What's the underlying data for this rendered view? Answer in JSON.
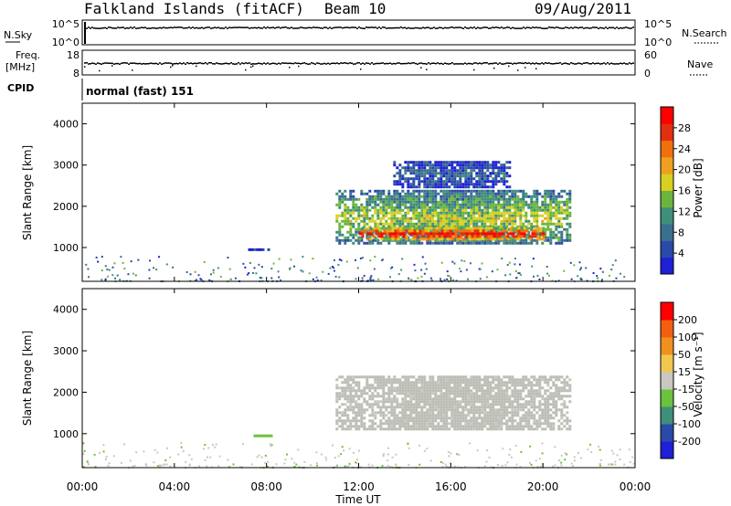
{
  "header": {
    "station": "Falkland Islands (fitACF)",
    "beam": "Beam 10",
    "date": "09/Aug/2011"
  },
  "strips": {
    "nsky_label": "N.Sky",
    "nsearch_label": "N.Search",
    "freq_label_line1": "Freq.",
    "freq_label_line2": "[MHz]",
    "nave_label": "Nave",
    "cpid_label": "CPID",
    "cpid_text": "normal (fast) 151",
    "noise_left_ticks": [
      "10^5",
      "10^0"
    ],
    "noise_right_ticks": [
      "10^5",
      "10^0"
    ],
    "freq_left_ticks": [
      "18",
      "8"
    ],
    "nave_right_ticks": [
      "60",
      "0"
    ]
  },
  "colors": {
    "power_scale": [
      "#1f1fd6",
      "#2a4aa8",
      "#3b6f8e",
      "#3f8f7a",
      "#6bb53c",
      "#d8d020",
      "#f0a020",
      "#f07010",
      "#e03010",
      "#ff0000"
    ],
    "velocity_scale": [
      "#1f1fd6",
      "#2a4aa8",
      "#3f8f7a",
      "#6bc23c",
      "#c8c8c0",
      "#f0c850",
      "#f09020",
      "#f06010",
      "#ff0000"
    ],
    "ground_scatter": "#bdbdb5"
  },
  "chart_data": [
    {
      "type": "heatmap",
      "name": "power",
      "ylabel": "Slant Range [km]",
      "yticks": [
        "4000",
        "3000",
        "2000",
        "1000"
      ],
      "ylim": [
        180,
        4500
      ],
      "xlim": [
        "00:00",
        "24:00"
      ],
      "colorbar_label": "Power [dB]",
      "colorbar_ticks": [
        "28",
        "24",
        "20",
        "16",
        "12",
        "8",
        "4"
      ],
      "colorbar_range": [
        0,
        30
      ],
      "echo_regions": [
        {
          "start_hour": 11.0,
          "end_hour": 21.2,
          "range_km": [
            1100,
            2400
          ],
          "power_db": 14
        },
        {
          "start_hour": 12.0,
          "end_hour": 20.0,
          "range_km": [
            1200,
            1500
          ],
          "power_db": 26
        },
        {
          "start_hour": 13.5,
          "end_hour": 18.5,
          "range_km": [
            2500,
            3100
          ],
          "power_db": 6
        },
        {
          "start_hour": 7.2,
          "end_hour": 8.2,
          "range_km": [
            920,
            980
          ],
          "power_db": 4
        }
      ]
    },
    {
      "type": "heatmap",
      "name": "velocity",
      "ylabel": "Slant Range [km]",
      "yticks": [
        "4000",
        "3000",
        "2000",
        "1000"
      ],
      "ylim": [
        180,
        4500
      ],
      "xlim": [
        "00:00",
        "24:00"
      ],
      "xticks": [
        "00:00",
        "04:00",
        "08:00",
        "12:00",
        "16:00",
        "20:00",
        "00:00"
      ],
      "xlabel": "Time UT",
      "colorbar_label": "Velocity [m s⁻¹]",
      "colorbar_ticks": [
        "200",
        "100",
        "50",
        "15",
        "-15",
        "-50",
        "-100",
        "-200"
      ],
      "colorbar_range": [
        -250,
        250
      ],
      "echo_regions": [
        {
          "start_hour": 11.0,
          "end_hour": 21.2,
          "range_km": [
            1100,
            2400
          ],
          "velocity_ms": 0,
          "ground_scatter": true
        },
        {
          "start_hour": 7.2,
          "end_hour": 8.2,
          "range_km": [
            920,
            980
          ],
          "velocity_ms": -60
        }
      ]
    }
  ]
}
